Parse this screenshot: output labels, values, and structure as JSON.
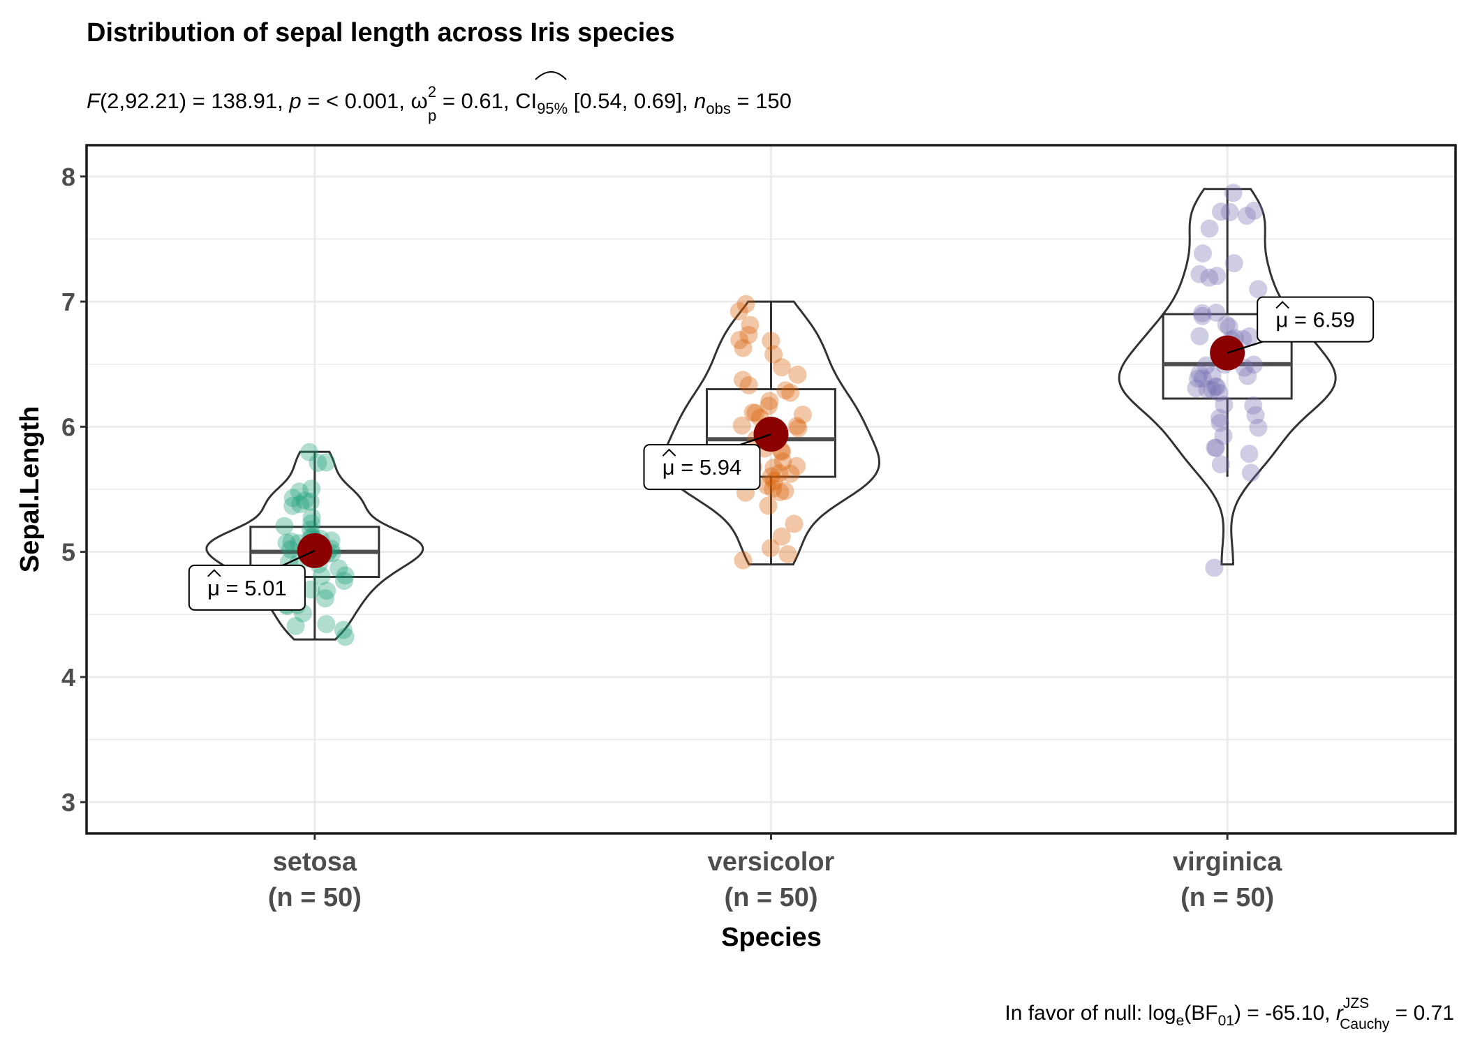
{
  "chart_data": {
    "type": "violin-box-scatter",
    "title": "Distribution of sepal length across Iris species",
    "subtitle": {
      "F_label": "F",
      "F_df": "(2,92.21) = 138.91, ",
      "p_label": "p",
      "p_value": " = < 0.001, ",
      "omega_base": "ω",
      "omega_sup": "2",
      "omega_sub": "p",
      "omega_value": " = 0.61, CI",
      "ci_sub": "95%",
      "ci_value": " [0.54, 0.69], ",
      "n_label": "n",
      "n_sub": "obs",
      "n_value": " = 150"
    },
    "xlabel": "Species",
    "ylabel": "Sepal.Length",
    "ylim": [
      2.75,
      8.25
    ],
    "yticks": [
      "3",
      "4",
      "5",
      "6",
      "7",
      "8"
    ],
    "grid": true,
    "categories": [
      {
        "name": "setosa",
        "n_label": "(n = 50)"
      },
      {
        "name": "versicolor",
        "n_label": "(n = 50)"
      },
      {
        "name": "virginica",
        "n_label": "(n = 50)"
      }
    ],
    "colors": {
      "setosa": "#1b9e77",
      "versicolor": "#d95f02",
      "virginica": "#7570b3",
      "mean": "#8b0000"
    },
    "box": [
      {
        "min": 4.3,
        "q1": 4.8,
        "median": 5.0,
        "q3": 5.2,
        "max": 5.8
      },
      {
        "min": 4.9,
        "q1": 5.6,
        "median": 5.9,
        "q3": 6.3,
        "max": 7.0
      },
      {
        "min": 5.6,
        "q1": 6.225,
        "median": 6.5,
        "q3": 6.9,
        "max": 7.9
      }
    ],
    "means": [
      5.01,
      5.94,
      6.59
    ],
    "mean_labels": [
      "μ = 5.01",
      "μ = 5.94",
      "μ = 6.59"
    ],
    "points": [
      [
        5.1,
        4.9,
        4.7,
        4.6,
        5.0,
        5.4,
        4.6,
        5.0,
        4.4,
        4.9,
        5.4,
        4.8,
        4.8,
        4.3,
        5.8,
        5.7,
        5.4,
        5.1,
        5.7,
        5.1,
        5.4,
        5.1,
        4.6,
        5.1,
        4.8,
        5.0,
        5.0,
        5.2,
        5.2,
        4.7,
        4.8,
        5.4,
        5.2,
        5.5,
        4.9,
        5.0,
        5.5,
        4.9,
        4.4,
        5.1,
        5.0,
        4.5,
        4.4,
        5.0,
        5.1,
        4.8,
        5.1,
        4.6,
        5.3,
        5.0
      ],
      [
        7.0,
        6.4,
        6.9,
        5.5,
        6.5,
        5.7,
        6.3,
        4.9,
        6.6,
        5.2,
        5.0,
        5.9,
        6.0,
        6.1,
        5.6,
        6.7,
        5.6,
        5.8,
        6.2,
        5.6,
        5.9,
        6.1,
        6.3,
        6.1,
        6.4,
        6.6,
        6.8,
        6.7,
        6.0,
        5.7,
        5.5,
        5.5,
        5.8,
        6.0,
        5.4,
        6.0,
        6.7,
        6.3,
        5.6,
        5.5,
        5.5,
        6.1,
        5.8,
        5.0,
        5.6,
        5.7,
        5.7,
        6.2,
        5.1,
        5.7
      ],
      [
        6.3,
        5.8,
        7.1,
        6.3,
        6.5,
        7.6,
        4.9,
        7.3,
        6.7,
        7.2,
        6.5,
        6.4,
        6.8,
        5.7,
        5.8,
        6.4,
        6.5,
        7.7,
        7.7,
        6.0,
        6.9,
        5.6,
        7.7,
        6.3,
        6.7,
        7.2,
        6.2,
        6.1,
        6.4,
        7.2,
        7.4,
        7.9,
        6.4,
        6.3,
        6.1,
        7.7,
        6.3,
        6.4,
        6.0,
        6.9,
        6.7,
        6.9,
        5.8,
        6.8,
        6.7,
        6.7,
        6.3,
        6.5,
        6.2,
        5.9
      ]
    ],
    "caption": {
      "prefix": "In favor of null: log",
      "e_sub": "e",
      "bf_open": "(BF",
      "bf_sub": "01",
      "bf_close": ") = -65.10, ",
      "r_label": "r",
      "r_sup": "JZS",
      "r_sub": "Cauchy",
      "r_value": " = 0.71"
    }
  }
}
